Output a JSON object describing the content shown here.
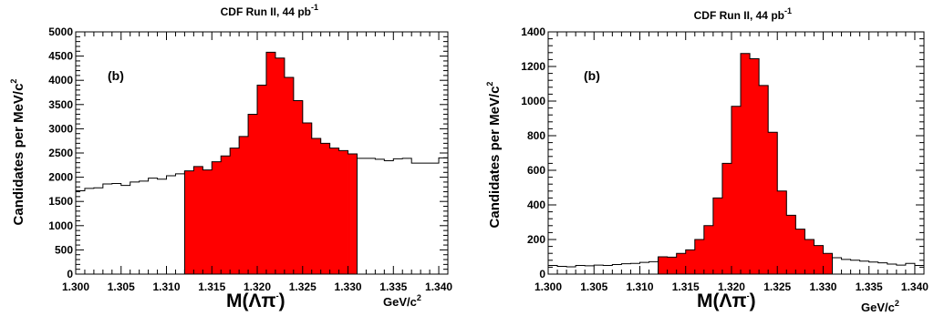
{
  "chart_data": [
    {
      "type": "bar",
      "title": "CDF Run II, 44 pb",
      "title_sup": "-1",
      "annotation": "(b)",
      "ylabel": "Candidates per MeV/c",
      "ylabel_sup": "2",
      "xlabel": "M(Λπ",
      "xlabel_sup": "-",
      "xlabel_close": ")",
      "xunit": "GeV/c",
      "xunit_sup": "2",
      "xlim": [
        1.3,
        1.341
      ],
      "ylim": [
        0,
        5000
      ],
      "x_ticks": [
        "1.300",
        "1.305",
        "1.310",
        "1.315",
        "1.320",
        "1.325",
        "1.330",
        "1.335",
        "1.340"
      ],
      "y_ticks": [
        "0",
        "500",
        "1000",
        "1500",
        "2000",
        "2500",
        "3000",
        "3500",
        "4000",
        "4500",
        "5000"
      ],
      "bin_start": 1.3,
      "bin_width": 0.001,
      "values": [
        1720,
        1770,
        1780,
        1860,
        1870,
        1830,
        1900,
        1920,
        1980,
        1960,
        2030,
        2070,
        2130,
        2220,
        2150,
        2320,
        2440,
        2600,
        2840,
        3300,
        3900,
        4580,
        4460,
        4060,
        3580,
        3120,
        2800,
        2700,
        2600,
        2550,
        2480,
        2390,
        2390,
        2370,
        2340,
        2380,
        2390,
        2290,
        2290,
        2290,
        2400
      ],
      "signal_range": [
        1.312,
        1.331
      ],
      "fill_color": "#ff0000",
      "line_color": "#000000"
    },
    {
      "type": "bar",
      "title": "CDF Run II, 44 pb",
      "title_sup": "-1",
      "annotation": "(b)",
      "ylabel": "Candidates per MeV/c",
      "ylabel_sup": "2",
      "xlabel": "M(Λπ",
      "xlabel_sup": "-",
      "xlabel_close": ")",
      "xunit": "GeV/c",
      "xunit_sup": "2",
      "xlim": [
        1.3,
        1.341
      ],
      "ylim": [
        0,
        1400
      ],
      "x_ticks": [
        "1.300",
        "1.305",
        "1.310",
        "1.315",
        "1.320",
        "1.325",
        "1.330",
        "1.335",
        "1.340"
      ],
      "y_ticks": [
        "0",
        "200",
        "400",
        "600",
        "800",
        "1000",
        "1200",
        "1400"
      ],
      "bin_start": 1.3,
      "bin_width": 0.001,
      "values": [
        50,
        45,
        42,
        50,
        48,
        52,
        50,
        55,
        60,
        62,
        68,
        72,
        100,
        98,
        120,
        140,
        200,
        280,
        440,
        640,
        970,
        1275,
        1245,
        1090,
        820,
        480,
        340,
        260,
        200,
        165,
        120,
        95,
        85,
        80,
        75,
        70,
        65,
        58,
        52,
        62,
        50
      ],
      "signal_range": [
        1.312,
        1.331
      ],
      "fill_color": "#ff0000",
      "line_color": "#000000"
    }
  ]
}
